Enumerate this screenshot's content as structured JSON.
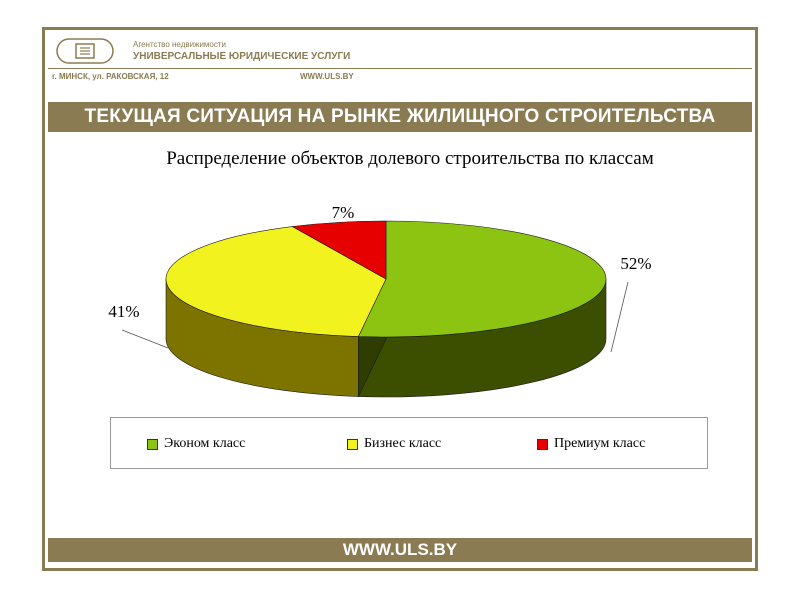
{
  "header": {
    "agency_small": "Агентство недвижимости",
    "agency_name": "УНИВЕРСАЛЬНЫЕ ЮРИДИЧЕСКИЕ УСЛУГИ",
    "address": "г. МИНСК, ул. РАКОВСКАЯ, 12",
    "site": "WWW.ULS.BY"
  },
  "slide_title": "ТЕКУЩАЯ СИТУАЦИЯ НА РЫНКЕ ЖИЛИЩНОГО СТРОИТЕЛЬСТВА",
  "footer": {
    "site": "WWW.ULS.BY"
  },
  "colors": {
    "brand": "#8b7b52",
    "economy": "#8cc411",
    "business": "#f2f21e",
    "premium": "#e60000"
  },
  "chart_data": {
    "type": "pie",
    "title": "Распределение объектов долевого строительства по классам",
    "categories": [
      "Эконом класс",
      "Бизнес класс",
      "Премиум класс"
    ],
    "values": [
      52,
      41,
      7
    ],
    "data_labels": [
      "52%",
      "41%",
      "7%"
    ],
    "legend_position": "bottom",
    "three_d": true
  }
}
